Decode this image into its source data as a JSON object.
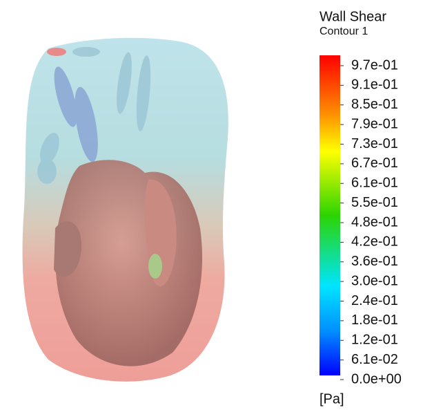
{
  "legend": {
    "title": "Wall Shear",
    "subtitle": "Contour 1",
    "labels": [
      "9.7e-01",
      "9.1e-01",
      "8.5e-01",
      "7.9e-01",
      "7.3e-01",
      "6.7e-01",
      "6.1e-01",
      "5.5e-01",
      "4.8e-01",
      "4.2e-01",
      "3.6e-01",
      "3.0e-01",
      "2.4e-01",
      "1.8e-01",
      "1.2e-01",
      "6.1e-02",
      "0.0e+00"
    ],
    "unit": "[Pa]"
  }
}
